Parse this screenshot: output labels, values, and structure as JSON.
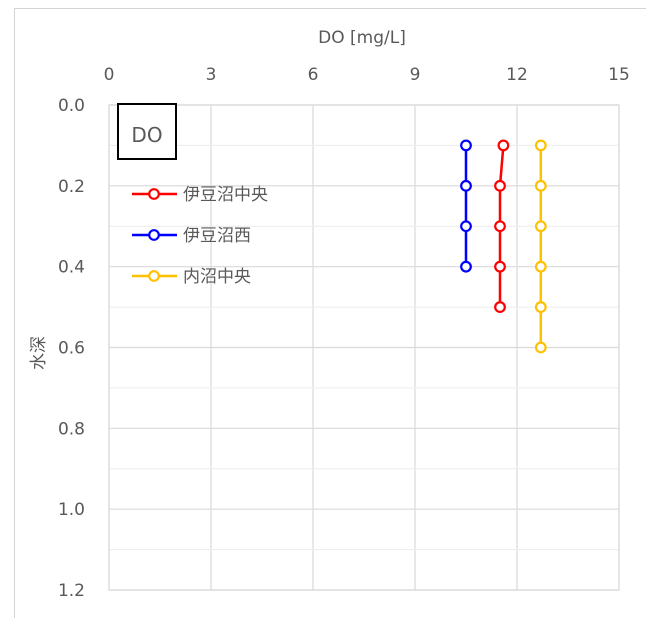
{
  "chart_data": {
    "type": "line",
    "title": "",
    "xlabel": "DO  [mg/L]",
    "ylabel": "水深",
    "annotation": "DO",
    "xlim": [
      0,
      15
    ],
    "ylim": [
      0.0,
      1.2
    ],
    "x_ticks": [
      "0",
      "3",
      "6",
      "9",
      "12",
      "15"
    ],
    "y_ticks": [
      "0.0",
      "0.2",
      "0.4",
      "0.6",
      "0.8",
      "1.0",
      "1.2"
    ],
    "x_axis_position": "top",
    "y_axis_inverted": true,
    "grid": true,
    "legend_position": "top-left",
    "series": [
      {
        "name": "伊豆沼中央",
        "color": "#ff0000",
        "x": [
          11.6,
          11.5,
          11.5,
          11.5,
          11.5
        ],
        "y": [
          0.1,
          0.2,
          0.3,
          0.4,
          0.5
        ]
      },
      {
        "name": "伊豆沼西",
        "color": "#0000ff",
        "x": [
          10.5,
          10.5,
          10.5,
          10.5
        ],
        "y": [
          0.1,
          0.2,
          0.3,
          0.4
        ]
      },
      {
        "name": "内沼中央",
        "color": "#ffc000",
        "x": [
          12.7,
          12.7,
          12.7,
          12.7,
          12.7,
          12.7
        ],
        "y": [
          0.1,
          0.2,
          0.3,
          0.4,
          0.5,
          0.6
        ]
      }
    ]
  }
}
